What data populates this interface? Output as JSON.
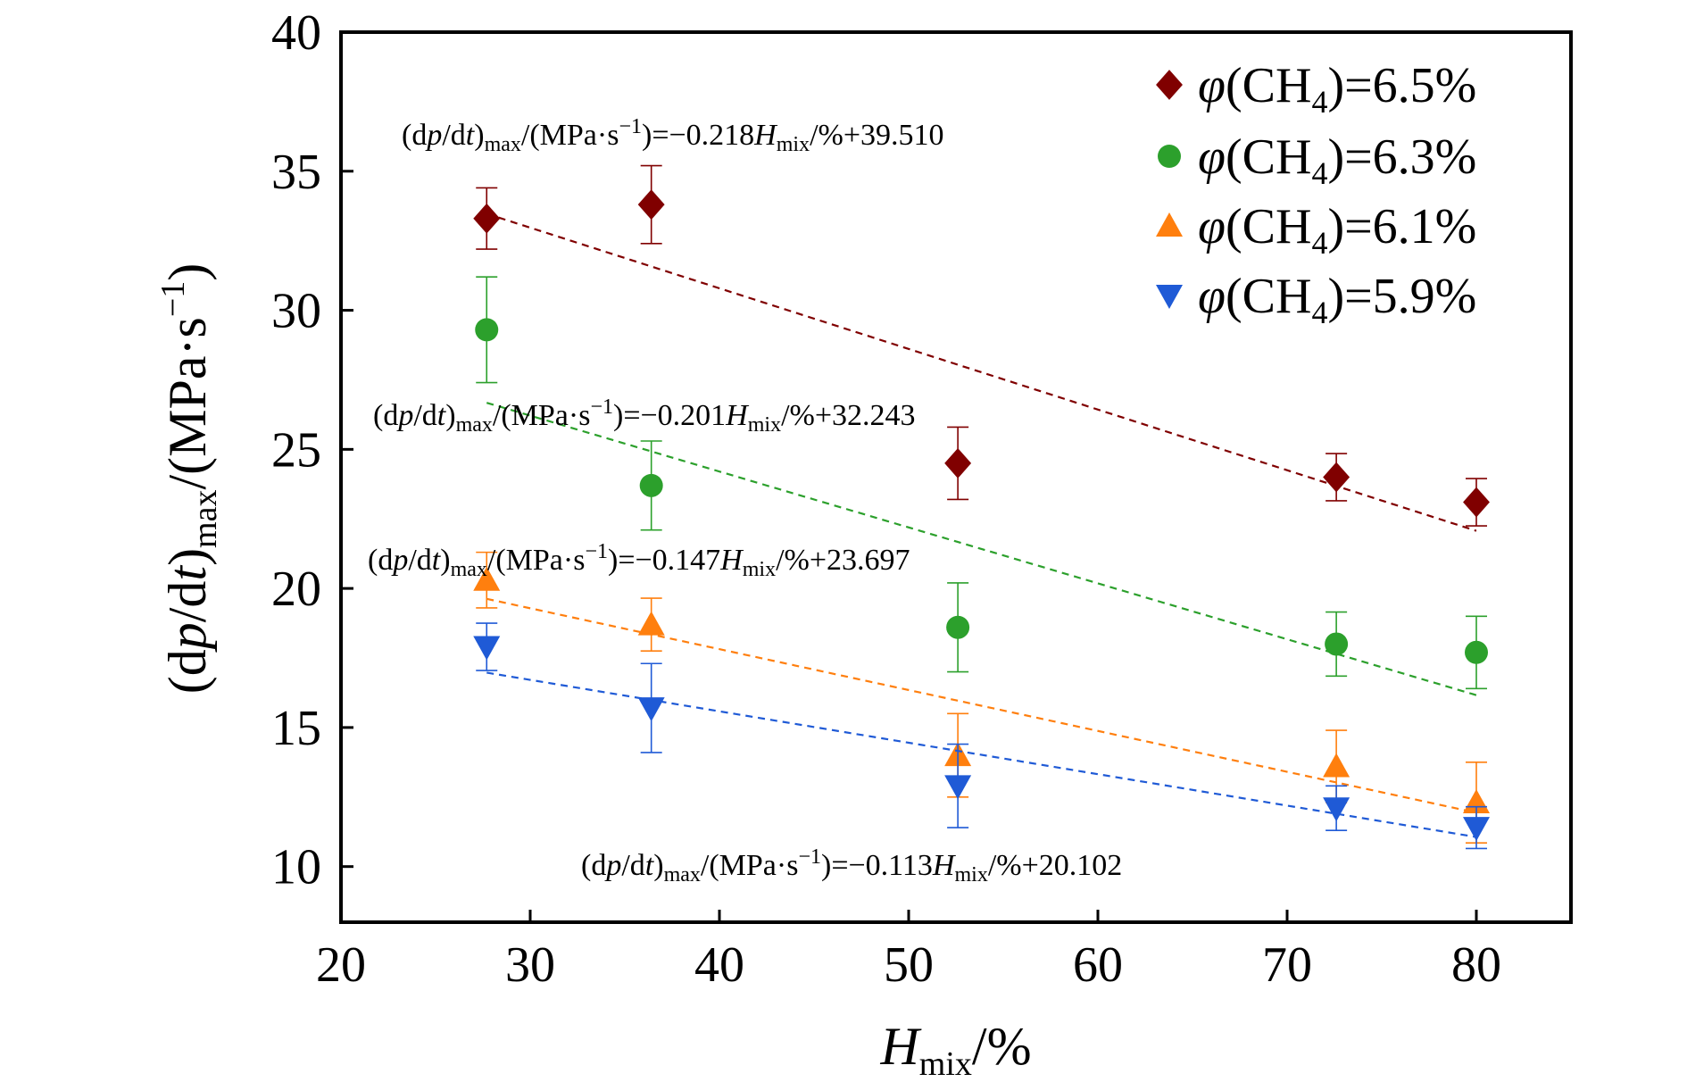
{
  "chart_data": {
    "type": "scatter",
    "xlim": [
      20,
      85
    ],
    "ylim": [
      8,
      40
    ],
    "x_ticks": [
      "20",
      "30",
      "40",
      "50",
      "60",
      "70",
      "80"
    ],
    "y_ticks": [
      "10",
      "15",
      "20",
      "25",
      "30",
      "35",
      "40"
    ],
    "xlabel": {
      "main": "H",
      "sub": "mix",
      "rest": "/%"
    },
    "ylabel": {
      "pre": "(d",
      "var1": "p",
      "mid": "/d",
      "var2": "t",
      "close": ")",
      "sub": "max",
      "rest": "/(MPa·s",
      "sup": "−1",
      "end": ")"
    },
    "legend_position": "top-right",
    "grid": false,
    "series": [
      {
        "name": {
          "phi": "φ",
          "pre": "(CH",
          "sub": "4",
          "post": ")=6.5%"
        },
        "marker": "diamond",
        "color": "#800000",
        "x": [
          27.7,
          36.4,
          52.6,
          72.6,
          80.0
        ],
        "y": [
          33.3,
          33.8,
          24.5,
          24.0,
          23.1
        ],
        "err": [
          1.1,
          1.4,
          1.3,
          0.85,
          0.85
        ],
        "fit": {
          "slope": -0.218,
          "intercept": 39.51,
          "x_range": [
            27.7,
            80.0
          ]
        },
        "equation": {
          "pre": "(d",
          "v1": "p",
          "mid": "/d",
          "v2": "t",
          "sub1": "max",
          "unit": "/(MPa·s",
          "sup": "−1",
          "eq": ")=−0.218",
          "H": "H",
          "sub2": "mix",
          "tail": "/%+39.510"
        }
      },
      {
        "name": {
          "phi": "φ",
          "pre": "(CH",
          "sub": "4",
          "post": ")=6.3%"
        },
        "marker": "circle",
        "color": "#2ca02c",
        "x": [
          27.7,
          36.4,
          52.6,
          72.6,
          80.0
        ],
        "y": [
          29.3,
          23.7,
          18.6,
          18.0,
          17.7
        ],
        "err": [
          1.9,
          1.6,
          1.6,
          1.15,
          1.3
        ],
        "fit": {
          "slope": -0.201,
          "intercept": 32.243,
          "x_range": [
            27.7,
            80.0
          ]
        },
        "equation": {
          "pre": "(d",
          "v1": "p",
          "mid": "/d",
          "v2": "t",
          "sub1": "max",
          "unit": "/(MPa·s",
          "sup": "−1",
          "eq": ")=−0.201",
          "H": "H",
          "sub2": "mix",
          "tail": "/%+32.243"
        }
      },
      {
        "name": {
          "phi": "φ",
          "pre": "(CH",
          "sub": "4",
          "post": ")=6.1%"
        },
        "marker": "triangle-up",
        "color": "#ff7f0e",
        "x": [
          27.7,
          36.4,
          52.6,
          72.6,
          80.0
        ],
        "y": [
          20.3,
          18.7,
          14.0,
          13.6,
          12.3
        ],
        "err": [
          1.0,
          0.95,
          1.5,
          1.3,
          1.45
        ],
        "fit": {
          "slope": -0.147,
          "intercept": 23.697,
          "x_range": [
            27.7,
            80.0
          ]
        },
        "equation": {
          "pre": "(d",
          "v1": "p",
          "mid": "/d",
          "v2": "t",
          "sub1": "max",
          "unit": "/(MPa·s",
          "sup": "−1",
          "eq": ")=−0.147",
          "H": "H",
          "sub2": "mix",
          "tail": "/%+23.697"
        }
      },
      {
        "name": {
          "phi": "φ",
          "pre": "(CH",
          "sub": "4",
          "post": ")=5.9%"
        },
        "marker": "triangle-down",
        "color": "#1f5ad6",
        "x": [
          27.7,
          36.4,
          52.6,
          72.6,
          80.0
        ],
        "y": [
          17.9,
          15.7,
          12.9,
          12.1,
          11.4
        ],
        "err": [
          0.85,
          1.6,
          1.5,
          0.8,
          0.75
        ],
        "fit": {
          "slope": -0.113,
          "intercept": 20.102,
          "x_range": [
            27.7,
            80.0
          ]
        },
        "equation": {
          "pre": "(d",
          "v1": "p",
          "mid": "/d",
          "v2": "t",
          "sub1": "max",
          "unit": "/(MPa·s",
          "sup": "−1",
          "eq": ")=−0.113",
          "H": "H",
          "sub2": "mix",
          "tail": "/%+20.102"
        }
      }
    ]
  }
}
